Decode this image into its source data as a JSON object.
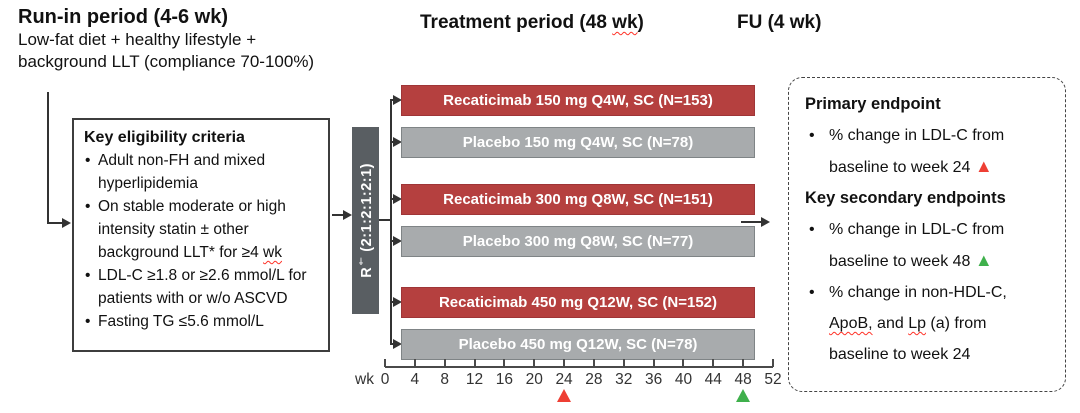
{
  "headers": {
    "runin_title": "Run-in period (4-6 wk)",
    "runin_line1": "Low-fat diet + healthy lifestyle +",
    "runin_line2": "background LLT (compliance 70-100%)",
    "treatment_title_segments": [
      {
        "text": "Treatment period (48 "
      },
      {
        "text": "wk",
        "class": "wavy"
      },
      {
        "text": ")"
      }
    ],
    "fu_title": "FU (4 wk)"
  },
  "eligibility": {
    "title": "Key eligibility criteria",
    "items": [
      {
        "segments": [
          {
            "text": "Adult non-FH and mixed"
          },
          {
            "br": true
          },
          {
            "text": "hyperlipidemia"
          }
        ]
      },
      {
        "segments": [
          {
            "text": "On stable moderate or high"
          },
          {
            "br": true
          },
          {
            "text": "intensity statin ± other"
          },
          {
            "br": true
          },
          {
            "text": "background LLT* for ≥4 "
          },
          {
            "text": "wk",
            "class": "wavy"
          }
        ]
      },
      {
        "segments": [
          {
            "text": "LDL-C ≥1.8 or ≥2.6 mmol/L for"
          },
          {
            "br": true
          },
          {
            "text": "patients with or w/o ASCVD"
          }
        ]
      },
      {
        "segments": [
          {
            "text": "Fasting TG ≤5.6 mmol/L"
          }
        ]
      }
    ]
  },
  "randomization": {
    "letter": "R",
    "superscript": "†",
    "ratio": " (2:1:2:1:2:1)"
  },
  "arms": [
    {
      "label": "Recaticimab 150 mg Q4W, SC (N=153)",
      "type": "recaticimab"
    },
    {
      "label": "Placebo 150 mg Q4W, SC (N=78)",
      "type": "placebo"
    },
    {
      "label": "Recaticimab 300 mg Q8W, SC (N=151)",
      "type": "recaticimab"
    },
    {
      "label": "Placebo 300 mg Q8W, SC (N=77)",
      "type": "placebo"
    },
    {
      "label": "Recaticimab 450 mg Q12W, SC (N=152)",
      "type": "recaticimab"
    },
    {
      "label": "Placebo 450 mg Q12W, SC (N=78)",
      "type": "placebo"
    }
  ],
  "axis": {
    "unit_label": "wk",
    "weeks": [
      "0",
      "4",
      "8",
      "12",
      "16",
      "20",
      "24",
      "28",
      "32",
      "36",
      "40",
      "44",
      "48",
      "52"
    ],
    "max_week": 52,
    "markers": [
      {
        "week": 24,
        "color": "#ee3f34",
        "name": "primary-endpoint-week-marker"
      },
      {
        "week": 48,
        "color": "#3fb04c",
        "name": "secondary-endpoint-week-marker"
      }
    ]
  },
  "endpoints": {
    "primary_title": "Primary endpoint",
    "primary_items": [
      {
        "segments": [
          {
            "text": "% change in LDL-C from"
          },
          {
            "br": true
          },
          {
            "text": "baseline to week 24 "
          },
          {
            "text": "▲",
            "class": "tri-red"
          }
        ]
      }
    ],
    "secondary_title": "Key secondary endpoints",
    "secondary_items": [
      {
        "segments": [
          {
            "text": "% change in LDL-C from"
          },
          {
            "br": true
          },
          {
            "text": "baseline to week 48 "
          },
          {
            "text": "▲",
            "class": "tri-green"
          }
        ]
      },
      {
        "segments": [
          {
            "text": "% change in non-HDL-C,"
          },
          {
            "br": true
          },
          {
            "text": "ApoB,",
            "class": "wavy"
          },
          {
            "text": " and "
          },
          {
            "text": "Lp",
            "class": "wavy"
          },
          {
            "text": " (a) from"
          },
          {
            "br": true
          },
          {
            "text": "baseline to week 24"
          }
        ]
      }
    ]
  },
  "colors": {
    "recaticimab_bar": "#b5403f",
    "placebo_bar": "#a8abad",
    "randomization_bar": "#595e62",
    "primary_marker": "#ee3f34",
    "secondary_marker": "#3fb04c",
    "spellcheck_underline": "#ff3126"
  }
}
